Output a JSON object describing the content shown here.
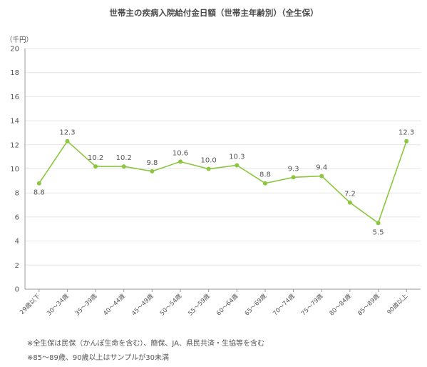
{
  "chart_data": {
    "type": "line",
    "title": "世帯主の疾病入院給付金日額（世帯主年齢別）（全生保）",
    "unit_label": "（千円）",
    "ylim": [
      0,
      20
    ],
    "yticks": [
      "0",
      "2",
      "4",
      "6",
      "8",
      "10",
      "12",
      "14",
      "16",
      "18",
      "20"
    ],
    "grid": true,
    "categories": [
      "29歳以下",
      "30～34歳",
      "35～39歳",
      "40～44歳",
      "45～49歳",
      "50～54歳",
      "55～59歳",
      "60～64歳",
      "65～69歳",
      "70～74歳",
      "75～79歳",
      "80～84歳",
      "85～89歳",
      "90歳以上"
    ],
    "series": [
      {
        "values": [
          8.8,
          12.3,
          10.2,
          10.2,
          9.8,
          10.6,
          10.0,
          10.3,
          8.8,
          9.3,
          9.4,
          7.2,
          5.5,
          12.3
        ],
        "labels": [
          "8.8",
          "12.3",
          "10.2",
          "10.2",
          "9.8",
          "10.6",
          "10.0",
          "10.3",
          "8.8",
          "9.3",
          "9.4",
          "7.2",
          "5.5",
          "12.3"
        ],
        "label_below": [
          true,
          false,
          false,
          false,
          false,
          false,
          false,
          false,
          false,
          false,
          false,
          false,
          true,
          false
        ],
        "color": "#8cc63f"
      }
    ]
  },
  "notes": [
    "※全生保は民保（かんぽ生命を含む）、簡保、JA、県民共済・生協等を含む",
    "※85～89歳、90歳以上はサンプルが30未満"
  ],
  "colors": {
    "line": "#8cc63f",
    "grid": "#e6e6e6",
    "axis": "#999999"
  }
}
